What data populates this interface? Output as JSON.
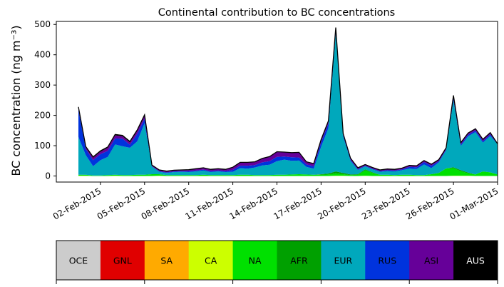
{
  "chart_data": {
    "type": "area",
    "title": "Continental contribution to BC concentrations",
    "xlabel": "",
    "ylabel": "BC concentration (ng m⁻³)",
    "ylim": [
      -20,
      510
    ],
    "xlim": [
      "2015-01-30",
      "2015-03-01"
    ],
    "stacked": true,
    "y_ticks": [
      0,
      100,
      200,
      300,
      400,
      500
    ],
    "x_ticks": [
      {
        "date": "2015-02-02",
        "label": "02-Feb-2015"
      },
      {
        "date": "2015-02-05",
        "label": "05-Feb-2015"
      },
      {
        "date": "2015-02-08",
        "label": "08-Feb-2015"
      },
      {
        "date": "2015-02-11",
        "label": "11-Feb-2015"
      },
      {
        "date": "2015-02-14",
        "label": "14-Feb-2015"
      },
      {
        "date": "2015-02-17",
        "label": "17-Feb-2015"
      },
      {
        "date": "2015-02-20",
        "label": "20-Feb-2015"
      },
      {
        "date": "2015-02-23",
        "label": "23-Feb-2015"
      },
      {
        "date": "2015-02-26",
        "label": "26-Feb-2015"
      },
      {
        "date": "2015-03-01",
        "label": "01-Mar-2015"
      }
    ],
    "x": [
      "2015-01-31 12:00",
      "2015-02-01 00:00",
      "2015-02-01 12:00",
      "2015-02-02 00:00",
      "2015-02-02 12:00",
      "2015-02-03 00:00",
      "2015-02-03 12:00",
      "2015-02-04 00:00",
      "2015-02-04 12:00",
      "2015-02-05 00:00",
      "2015-02-05 12:00",
      "2015-02-06 00:00",
      "2015-02-06 12:00",
      "2015-02-07 00:00",
      "2015-02-07 12:00",
      "2015-02-08 00:00",
      "2015-02-08 12:00",
      "2015-02-09 00:00",
      "2015-02-09 12:00",
      "2015-02-10 00:00",
      "2015-02-10 12:00",
      "2015-02-11 00:00",
      "2015-02-11 12:00",
      "2015-02-12 00:00",
      "2015-02-12 12:00",
      "2015-02-13 00:00",
      "2015-02-13 12:00",
      "2015-02-14 00:00",
      "2015-02-14 12:00",
      "2015-02-15 00:00",
      "2015-02-15 12:00",
      "2015-02-16 00:00",
      "2015-02-16 12:00",
      "2015-02-17 00:00",
      "2015-02-17 12:00",
      "2015-02-18 00:00",
      "2015-02-18 12:00",
      "2015-02-19 00:00",
      "2015-02-19 12:00",
      "2015-02-20 00:00",
      "2015-02-20 12:00",
      "2015-02-21 00:00",
      "2015-02-21 12:00",
      "2015-02-22 00:00",
      "2015-02-22 12:00",
      "2015-02-23 00:00",
      "2015-02-23 12:00",
      "2015-02-24 00:00",
      "2015-02-24 12:00",
      "2015-02-25 00:00",
      "2015-02-25 12:00",
      "2015-02-26 00:00",
      "2015-02-26 12:00",
      "2015-02-27 00:00",
      "2015-02-27 12:00",
      "2015-02-28 00:00",
      "2015-02-28 12:00",
      "2015-03-01 00:00"
    ],
    "series": [
      {
        "name": "OCE",
        "color": "#cccccc",
        "values": [
          0,
          0,
          0,
          0,
          0,
          0,
          0,
          0,
          0,
          0,
          0,
          0,
          0,
          0,
          0,
          0,
          0,
          0,
          0,
          0,
          0,
          0,
          0,
          0,
          0,
          0,
          0,
          0,
          0,
          0,
          0,
          0,
          0,
          0,
          0,
          0,
          0,
          0,
          0,
          0,
          0,
          0,
          0,
          0,
          0,
          0,
          0,
          0,
          0,
          0,
          0,
          0,
          0,
          0,
          0,
          0,
          0,
          0
        ]
      },
      {
        "name": "GNL",
        "color": "#e00000",
        "values": [
          0,
          0,
          0,
          0,
          0,
          0,
          0,
          0,
          0,
          0,
          0,
          0,
          0,
          0,
          0,
          0,
          0,
          0,
          0,
          0,
          0,
          0,
          0,
          0,
          0,
          0,
          0,
          0,
          0,
          0,
          0,
          0,
          0,
          0,
          0,
          0,
          0,
          0,
          0,
          0,
          0,
          0,
          0,
          0,
          0,
          0,
          0,
          0,
          0,
          0,
          0,
          0,
          0,
          0,
          0,
          0,
          0,
          0
        ]
      },
      {
        "name": "SA",
        "color": "#ffaa00",
        "values": [
          0,
          0,
          0,
          0,
          0,
          0,
          0,
          0,
          0,
          0,
          0,
          0,
          0,
          0,
          0,
          0,
          0,
          0,
          0,
          0,
          0,
          0,
          0,
          0,
          0,
          0,
          0,
          0,
          0,
          0,
          0,
          0,
          0,
          0,
          0,
          0,
          0,
          0,
          0,
          0,
          0,
          0,
          0,
          0,
          0,
          0,
          0,
          0,
          0,
          0,
          0,
          0,
          0,
          0,
          0,
          0,
          0,
          0
        ]
      },
      {
        "name": "CA",
        "color": "#ccff00",
        "values": [
          1,
          1,
          0,
          0,
          0,
          1,
          0,
          0,
          0,
          0,
          0,
          1,
          0,
          0,
          0,
          0,
          0,
          0,
          0,
          0,
          0,
          0,
          0,
          0,
          0,
          0,
          0,
          0,
          0,
          0,
          0,
          0,
          0,
          0,
          0,
          1,
          1,
          0,
          0,
          1,
          0,
          0,
          0,
          0,
          0,
          0,
          0,
          0,
          0,
          0,
          0,
          1,
          1,
          1,
          0,
          0,
          0,
          0
        ]
      },
      {
        "name": "NA",
        "color": "#00e000",
        "values": [
          3,
          3,
          2,
          2,
          3,
          3,
          3,
          3,
          4,
          4,
          6,
          5,
          3,
          3,
          3,
          3,
          3,
          4,
          3,
          3,
          3,
          3,
          4,
          4,
          3,
          3,
          3,
          4,
          4,
          5,
          6,
          5,
          4,
          4,
          5,
          8,
          5,
          3,
          4,
          18,
          10,
          4,
          4,
          3,
          4,
          4,
          3,
          3,
          6,
          10,
          25,
          25,
          15,
          8,
          5,
          15,
          12,
          5
        ]
      },
      {
        "name": "AFR",
        "color": "#00a000",
        "values": [
          0,
          0,
          0,
          0,
          0,
          0,
          0,
          0,
          0,
          0,
          0,
          0,
          0,
          0,
          0,
          0,
          0,
          0,
          0,
          0,
          0,
          0,
          0,
          0,
          0,
          0,
          0,
          0,
          0,
          0,
          0,
          0,
          0,
          2,
          3,
          6,
          4,
          2,
          2,
          3,
          2,
          0,
          0,
          0,
          0,
          0,
          0,
          0,
          0,
          0,
          0,
          3,
          3,
          2,
          0,
          0,
          0,
          0
        ]
      },
      {
        "name": "EUR",
        "color": "#00a8bc",
        "values": [
          125,
          65,
          30,
          50,
          60,
          100,
          95,
          90,
          110,
          170,
          25,
          8,
          7,
          10,
          11,
          10,
          12,
          14,
          10,
          12,
          10,
          11,
          22,
          20,
          25,
          32,
          34,
          45,
          50,
          45,
          45,
          25,
          20,
          90,
          150,
          455,
          120,
          45,
          14,
          10,
          10,
          10,
          12,
          12,
          15,
          20,
          20,
          35,
          20,
          35,
          60,
          220,
          80,
          120,
          140,
          95,
          120,
          100
        ]
      },
      {
        "name": "RUS",
        "color": "#0033dd",
        "values": [
          90,
          20,
          20,
          20,
          20,
          20,
          25,
          10,
          25,
          15,
          1,
          2,
          2,
          2,
          2,
          3,
          3,
          3,
          3,
          3,
          3,
          6,
          8,
          10,
          8,
          10,
          12,
          14,
          10,
          12,
          10,
          8,
          8,
          15,
          15,
          16,
          6,
          4,
          3,
          2,
          2,
          2,
          3,
          3,
          3,
          6,
          6,
          8,
          8,
          4,
          3,
          8,
          5,
          5,
          5,
          5,
          5,
          0
        ]
      },
      {
        "name": "ASI",
        "color": "#660099",
        "values": [
          6,
          5,
          8,
          8,
          10,
          10,
          8,
          8,
          10,
          10,
          3,
          3,
          3,
          3,
          3,
          4,
          5,
          5,
          5,
          5,
          5,
          8,
          10,
          10,
          10,
          12,
          14,
          16,
          14,
          14,
          16,
          8,
          8,
          8,
          8,
          3,
          3,
          4,
          3,
          3,
          3,
          3,
          3,
          3,
          3,
          4,
          4,
          4,
          4,
          4,
          4,
          8,
          5,
          5,
          5,
          5,
          5,
          0
        ]
      },
      {
        "name": "AUS",
        "color": "#000000",
        "values": [
          3,
          3,
          3,
          3,
          3,
          3,
          3,
          3,
          3,
          3,
          1,
          1,
          1,
          1,
          1,
          1,
          1,
          1,
          1,
          1,
          1,
          1,
          1,
          1,
          1,
          1,
          1,
          1,
          1,
          1,
          1,
          1,
          1,
          1,
          1,
          1,
          1,
          1,
          1,
          1,
          1,
          1,
          1,
          1,
          1,
          1,
          1,
          1,
          1,
          1,
          1,
          1,
          1,
          1,
          1,
          1,
          1,
          1
        ]
      }
    ],
    "legend": [
      "OCE",
      "GNL",
      "SA",
      "CA",
      "NA",
      "AFR",
      "EUR",
      "RUS",
      "ASI",
      "AUS"
    ],
    "grid": false
  }
}
